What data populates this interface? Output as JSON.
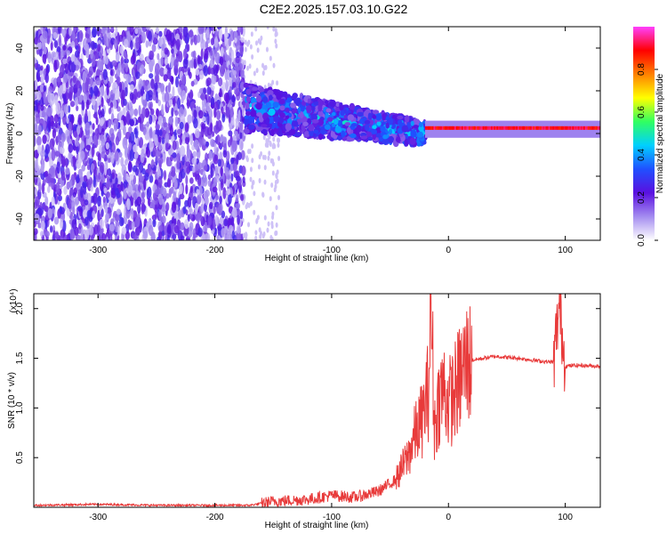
{
  "title": "C2E2.2025.157.03.10.G22",
  "colors": {
    "spectrum_low": "#e8e0ff",
    "spectrum_mid": "#6a1fe0",
    "snr_line": "#e83a3a"
  },
  "colorbar": {
    "label": "Normalized spectral amplitude",
    "ticks": [
      "0.0",
      "0.2",
      "0.4",
      "0.6",
      "0.8"
    ],
    "tick_values": [
      0.0,
      0.2,
      0.4,
      0.6,
      0.8
    ],
    "range": [
      0,
      1
    ],
    "colormap": [
      "#ffffff",
      "#a48cf0",
      "#5a10e0",
      "#2050ff",
      "#00d0ff",
      "#30ff60",
      "#ffff00",
      "#ff8000",
      "#ff0000",
      "#ff40ff"
    ]
  },
  "chart_data": [
    {
      "type": "heatmap",
      "xlabel": "Height of straight line (km)",
      "ylabel": "Frequency (Hz)",
      "xlim": [
        -355,
        130
      ],
      "ylim": [
        -50,
        50
      ],
      "xticks": [
        -300,
        -200,
        -100,
        0,
        100
      ],
      "xtick_labels": [
        "-300",
        "-200",
        "-100",
        "0",
        "100"
      ],
      "yticks": [
        -40,
        -20,
        0,
        20,
        40
      ],
      "ytick_labels": [
        "-40",
        "-20",
        "0",
        "20",
        "40"
      ],
      "regions": [
        {
          "x_from": -355,
          "x_to": -175,
          "description_level": "broadband noise, amplitude 0.1-0.3"
        },
        {
          "x_from": -175,
          "x_to": -20,
          "center_freq_start": 12,
          "center_freq_end": 0,
          "amplitude": 0.25
        },
        {
          "x_from": -20,
          "x_to": 130,
          "center_freq": 2,
          "amplitude": 0.95
        }
      ]
    },
    {
      "type": "line",
      "xlabel": "Height of straight line (km)",
      "ylabel": "SNR (10 * v/v)",
      "y_multiplier": "(x10⁴)",
      "xlim": [
        -355,
        130
      ],
      "ylim": [
        0,
        2.15
      ],
      "xticks": [
        -300,
        -200,
        -100,
        0,
        100
      ],
      "xtick_labels": [
        "-300",
        "-200",
        "-100",
        "0",
        "100"
      ],
      "yticks": [
        0.5,
        1.0,
        1.5,
        2.0
      ],
      "ytick_labels": [
        "0.5",
        "1.0",
        "1.5",
        "2.0"
      ],
      "series": [
        {
          "x": [
            -355,
            -300,
            -250,
            -200,
            -170,
            -160,
            -150,
            -120,
            -100,
            -80,
            -60,
            -45,
            -35,
            -28,
            -22,
            -17,
            -15,
            -12,
            -8,
            -4,
            0,
            5,
            10,
            15,
            20,
            30,
            40,
            60,
            80,
            90,
            95,
            100,
            110,
            130
          ],
          "y": [
            0.02,
            0.03,
            0.02,
            0.02,
            0.02,
            0.04,
            0.06,
            0.08,
            0.12,
            0.1,
            0.16,
            0.28,
            0.5,
            0.75,
            0.9,
            1.2,
            2.1,
            0.8,
            1.1,
            1.2,
            1.05,
            1.15,
            1.3,
            1.45,
            1.48,
            1.5,
            1.52,
            1.5,
            1.47,
            1.46,
            2.05,
            1.42,
            1.43,
            1.42
          ]
        }
      ]
    }
  ]
}
